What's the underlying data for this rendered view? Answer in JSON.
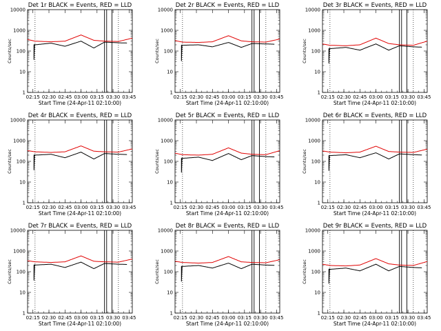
{
  "figure_title": "",
  "colors": {
    "events": "#000000",
    "lld": "#e00000",
    "background": "#ffffff"
  },
  "chart_data": [
    {
      "type": "line",
      "title": "Det 1r BLACK = Events, RED = LLD",
      "xlabel": "Start Time (24-Apr-11 02:10:00)",
      "ylabel": "Counts/sec",
      "xticks": [
        "02:15",
        "02:30",
        "02:45",
        "03:00",
        "03:15",
        "03:30",
        "03:45"
      ],
      "yticks": [
        "1",
        "10",
        "100",
        "1000",
        "10000"
      ],
      "ylim": [
        1,
        10000
      ],
      "yscale": "log",
      "x_units": "minutes since 02:10",
      "xlim": [
        0,
        98
      ],
      "event_levels": [
        300,
        200,
        240,
        170,
        300,
        140,
        270,
        250,
        240
      ],
      "lld_levels": [
        360,
        300,
        280,
        300,
        600,
        330,
        300,
        290,
        420
      ],
      "vertical_lines_solid_min": [
        72,
        74,
        79
      ],
      "vertical_lines_dotted_min": [
        7,
        85
      ]
    },
    {
      "type": "line",
      "title": "Det 2r BLACK = Events, RED = LLD",
      "xlabel": "Start Time (24-Apr-11 02:10:00)",
      "ylabel": "Counts/sec",
      "xticks": [
        "02:15",
        "02:30",
        "02:45",
        "03:00",
        "03:15",
        "03:30",
        "03:45"
      ],
      "yticks": [
        "1",
        "10",
        "100",
        "1000",
        "10000"
      ],
      "ylim": [
        1,
        10000
      ],
      "yscale": "log",
      "x_units": "minutes since 02:10",
      "xlim": [
        0,
        98
      ],
      "event_levels": [
        260,
        190,
        200,
        160,
        260,
        150,
        230,
        220,
        210
      ],
      "lld_levels": [
        320,
        270,
        260,
        280,
        550,
        310,
        280,
        270,
        380
      ],
      "vertical_lines_solid_min": [
        72,
        74,
        79
      ],
      "vertical_lines_dotted_min": [
        7,
        85
      ]
    },
    {
      "type": "line",
      "title": "Det 3r BLACK = Events, RED = LLD",
      "xlabel": "Start Time (24-Apr-11 02:10:00)",
      "ylabel": "Counts/sec",
      "xticks": [
        "02:15",
        "02:30",
        "02:45",
        "03:00",
        "03:15",
        "03:30",
        "03:45"
      ],
      "yticks": [
        "1",
        "10",
        "100",
        "1000",
        "10000"
      ],
      "ylim": [
        1,
        10000
      ],
      "yscale": "log",
      "x_units": "minutes since 02:10",
      "xlim": [
        0,
        98
      ],
      "event_levels": [
        200,
        130,
        150,
        110,
        220,
        110,
        180,
        160,
        150
      ],
      "lld_levels": [
        220,
        190,
        180,
        200,
        420,
        230,
        200,
        190,
        300
      ],
      "vertical_lines_solid_min": [
        72,
        74,
        79
      ],
      "vertical_lines_dotted_min": [
        7,
        85
      ]
    },
    {
      "type": "line",
      "title": "Det 4r BLACK = Events, RED = LLD",
      "xlabel": "Start Time (24-Apr-11 02:10:00)",
      "ylabel": "Counts/sec",
      "xticks": [
        "02:15",
        "02:30",
        "02:45",
        "03:00",
        "03:15",
        "03:30",
        "03:45"
      ],
      "yticks": [
        "1",
        "10",
        "100",
        "1000",
        "10000"
      ],
      "ylim": [
        1,
        10000
      ],
      "yscale": "log",
      "x_units": "minutes since 02:10",
      "xlim": [
        0,
        98
      ],
      "event_levels": [
        300,
        200,
        220,
        150,
        280,
        130,
        240,
        220,
        210
      ],
      "lld_levels": [
        330,
        290,
        270,
        290,
        560,
        310,
        290,
        280,
        400
      ],
      "vertical_lines_solid_min": [
        72,
        74,
        79
      ],
      "vertical_lines_dotted_min": [
        7,
        85
      ]
    },
    {
      "type": "line",
      "title": "Det 5r BLACK = Events, RED = LLD",
      "xlabel": "Start Time (24-Apr-11 02:10:00)",
      "ylabel": "Counts/sec",
      "xticks": [
        "02:15",
        "02:30",
        "02:45",
        "03:00",
        "03:15",
        "03:30",
        "03:45"
      ],
      "yticks": [
        "1",
        "10",
        "100",
        "1000",
        "10000"
      ],
      "ylim": [
        1,
        10000
      ],
      "yscale": "log",
      "x_units": "minutes since 02:10",
      "xlim": [
        0,
        98
      ],
      "event_levels": [
        230,
        140,
        160,
        110,
        240,
        120,
        190,
        170,
        160
      ],
      "lld_levels": [
        250,
        210,
        200,
        220,
        450,
        250,
        220,
        210,
        330
      ],
      "vertical_lines_solid_min": [
        72,
        74,
        79
      ],
      "vertical_lines_dotted_min": [
        7,
        85
      ]
    },
    {
      "type": "line",
      "title": "Det 6r BLACK = Events, RED = LLD",
      "xlabel": "Start Time (24-Apr-11 02:10:00)",
      "ylabel": "Counts/sec",
      "xticks": [
        "02:15",
        "02:30",
        "02:45",
        "03:00",
        "03:15",
        "03:30",
        "03:45"
      ],
      "yticks": [
        "1",
        "10",
        "100",
        "1000",
        "10000"
      ],
      "ylim": [
        1,
        10000
      ],
      "yscale": "log",
      "x_units": "minutes since 02:10",
      "xlim": [
        0,
        98
      ],
      "event_levels": [
        280,
        190,
        210,
        150,
        260,
        130,
        230,
        210,
        200
      ],
      "lld_levels": [
        320,
        280,
        260,
        280,
        540,
        300,
        280,
        270,
        390
      ],
      "vertical_lines_solid_min": [
        72,
        74,
        79
      ],
      "vertical_lines_dotted_min": [
        7,
        85
      ]
    },
    {
      "type": "line",
      "title": "Det 7r BLACK = Events, RED = LLD",
      "xlabel": "Start Time (24-Apr-11 02:10:00)",
      "ylabel": "Counts/sec",
      "xticks": [
        "02:15",
        "02:30",
        "02:45",
        "03:00",
        "03:15",
        "03:30",
        "03:45"
      ],
      "yticks": [
        "1",
        "10",
        "100",
        "1000",
        "10000"
      ],
      "ylim": [
        1,
        10000
      ],
      "yscale": "log",
      "x_units": "minutes since 02:10",
      "xlim": [
        0,
        98
      ],
      "event_levels": [
        300,
        210,
        230,
        160,
        290,
        140,
        250,
        230,
        220
      ],
      "lld_levels": [
        340,
        300,
        280,
        300,
        580,
        320,
        300,
        290,
        410
      ],
      "vertical_lines_solid_min": [
        72,
        74,
        79
      ],
      "vertical_lines_dotted_min": [
        7,
        85
      ]
    },
    {
      "type": "line",
      "title": "Det 8r BLACK = Events, RED = LLD",
      "xlabel": "Start Time (24-Apr-11 02:10:00)",
      "ylabel": "Counts/sec",
      "xticks": [
        "02:15",
        "02:30",
        "02:45",
        "03:00",
        "03:15",
        "03:30",
        "03:45"
      ],
      "yticks": [
        "1",
        "10",
        "100",
        "1000",
        "10000"
      ],
      "ylim": [
        1,
        10000
      ],
      "yscale": "log",
      "x_units": "minutes since 02:10",
      "xlim": [
        0,
        98
      ],
      "event_levels": [
        270,
        180,
        200,
        150,
        260,
        140,
        230,
        210,
        200
      ],
      "lld_levels": [
        320,
        280,
        260,
        280,
        540,
        300,
        280,
        270,
        380
      ],
      "vertical_lines_solid_min": [
        72,
        74,
        79
      ],
      "vertical_lines_dotted_min": [
        7,
        85
      ]
    },
    {
      "type": "line",
      "title": "Det 9r BLACK = Events, RED = LLD",
      "xlabel": "Start Time (24-Apr-11 02:10:00)",
      "ylabel": "Counts/sec",
      "xticks": [
        "02:15",
        "02:30",
        "02:45",
        "03:00",
        "03:15",
        "03:30",
        "03:45"
      ],
      "yticks": [
        "1",
        "10",
        "100",
        "1000",
        "10000"
      ],
      "ylim": [
        1,
        10000
      ],
      "yscale": "log",
      "x_units": "minutes since 02:10",
      "xlim": [
        0,
        98
      ],
      "event_levels": [
        210,
        130,
        150,
        110,
        230,
        110,
        180,
        160,
        150
      ],
      "lld_levels": [
        230,
        200,
        190,
        210,
        430,
        240,
        210,
        200,
        310
      ],
      "vertical_lines_solid_min": [
        72,
        74,
        79
      ],
      "vertical_lines_dotted_min": [
        7,
        85
      ]
    }
  ]
}
